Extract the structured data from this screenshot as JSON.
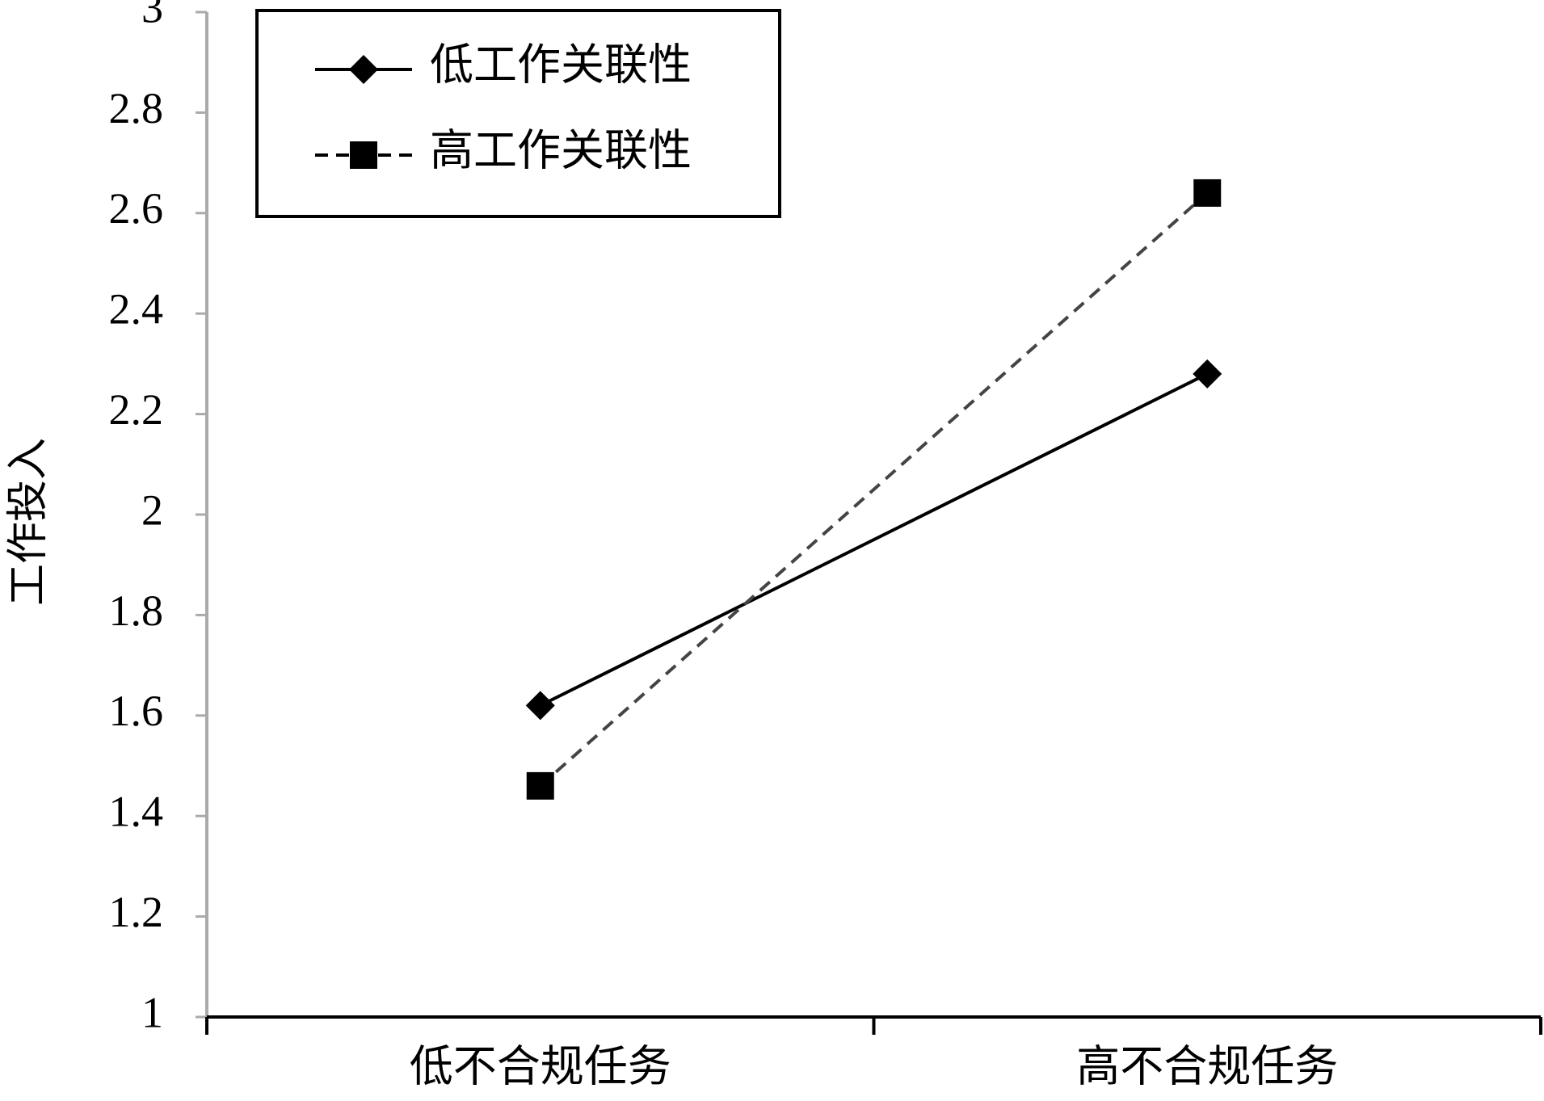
{
  "chart_data": {
    "type": "line",
    "y_label": "工作投入",
    "categories": [
      "低不合规任务",
      "高不合规任务"
    ],
    "series": [
      {
        "name": "低工作关联性",
        "color": "#000000",
        "line_style": "solid",
        "marker": "diamond",
        "values": [
          1.62,
          2.28
        ]
      },
      {
        "name": "高工作关联性",
        "color": "#000000",
        "line_style": "dashed",
        "marker": "square",
        "values": [
          1.46,
          2.64
        ]
      }
    ],
    "ylim": [
      1,
      3
    ],
    "yticks": [
      1,
      1.2,
      1.4,
      1.6,
      1.8,
      2,
      2.2,
      2.4,
      2.6,
      2.8,
      3
    ],
    "legend": "upper left"
  }
}
